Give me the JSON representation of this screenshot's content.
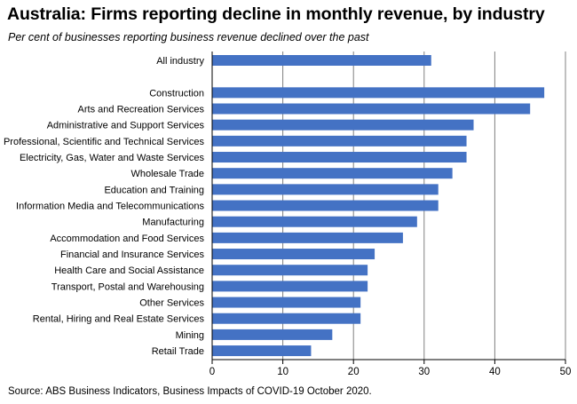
{
  "title": "Australia:  Firms reporting  decline in monthly revenue, by industry",
  "subtitle": "Per cent of businesses reporting business revenue declined over the past",
  "source": "Source: ABS Business Indicators, Business Impacts of COVID-19 October 2020.",
  "colors": {
    "bar": "#4472C4",
    "grid": "#808080",
    "axis": "#000000"
  },
  "chart_data": {
    "type": "bar",
    "orientation": "horizontal",
    "title": "Australia:  Firms reporting  decline in monthly revenue, by industry",
    "subtitle": "Per cent of businesses reporting business revenue declined over the past",
    "xlabel": "",
    "ylabel": "",
    "xlim": [
      0,
      50
    ],
    "xticks": [
      0,
      10,
      20,
      30,
      40,
      50
    ],
    "grid": true,
    "legend": "none",
    "categories": [
      "All industry",
      "",
      "Construction",
      "Arts and Recreation Services",
      "Administrative and Support Services",
      "Professional, Scientific and Technical Services",
      "Electricity, Gas, Water and Waste Services",
      "Wholesale Trade",
      "Education and Training",
      "Information Media and Telecommunications",
      "Manufacturing",
      "Accommodation and Food Services",
      "Financial and Insurance Services",
      "Health Care and Social Assistance",
      "Transport, Postal and Warehousing",
      "Other Services",
      "Rental, Hiring and Real Estate Services",
      "Mining",
      "Retail Trade"
    ],
    "values": [
      31,
      null,
      47,
      45,
      37,
      36,
      36,
      34,
      32,
      32,
      29,
      27,
      23,
      22,
      22,
      21,
      21,
      17,
      14
    ]
  }
}
